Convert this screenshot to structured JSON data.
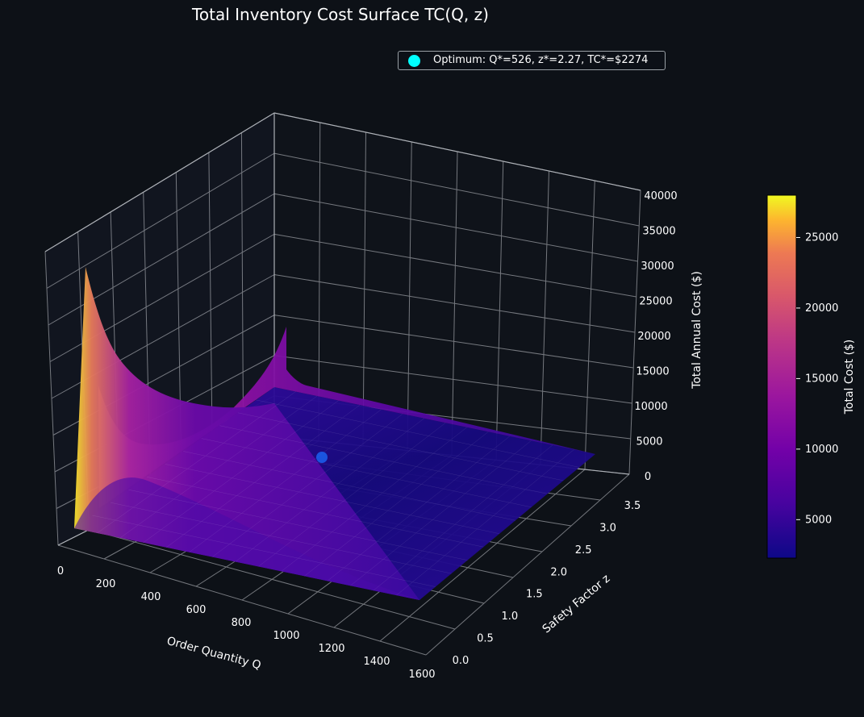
{
  "chart_data": {
    "type": "surface",
    "title": "Total Inventory Cost Surface  TC(Q, z)",
    "x_axis": {
      "label": "Order Quantity  Q",
      "ticks": [
        "0",
        "200",
        "400",
        "600",
        "800",
        "1000",
        "1200",
        "1400",
        "1600"
      ],
      "range": [
        0,
        1600
      ]
    },
    "y_axis": {
      "label": "Safety Factor  z",
      "ticks": [
        "0.0",
        "0.5",
        "1.0",
        "1.5",
        "2.0",
        "2.5",
        "3.0",
        "3.5"
      ],
      "range": [
        0,
        3.5
      ]
    },
    "z_axis": {
      "label": "Total Annual Cost ($)",
      "ticks": [
        "0",
        "5000",
        "10000",
        "15000",
        "20000",
        "25000",
        "30000",
        "35000",
        "40000"
      ],
      "range": [
        0,
        40000
      ]
    },
    "colorbar": {
      "label": "Total Cost ($)",
      "ticks": [
        "5000",
        "10000",
        "15000",
        "20000",
        "25000"
      ],
      "range": [
        2274,
        28000
      ],
      "colormap": "plasma"
    },
    "surface_samples": {
      "Q": [
        50,
        100,
        200,
        300,
        400,
        600,
        800,
        1000,
        1200,
        1400,
        1600
      ],
      "z": [
        0.0,
        0.5,
        1.0,
        1.5,
        2.0,
        2.5,
        3.0,
        3.5
      ],
      "tc_at_z0": [
        28000,
        15000,
        8200,
        5500,
        4300,
        3300,
        3100,
        3200,
        3400,
        3700,
        4000
      ],
      "tc_at_z3_5": [
        19500,
        11800,
        6300,
        4300,
        3400,
        2800,
        2650,
        2700,
        2850,
        3100,
        3350
      ]
    },
    "optimum": {
      "label": "Optimum: Q*=526, z*=2.27, TC*=$2274",
      "Q": 526,
      "z": 2.27,
      "TC": 2274,
      "color": "#00ffff"
    },
    "background": "#0d1117",
    "grid": true,
    "legend_position": "top-right"
  }
}
